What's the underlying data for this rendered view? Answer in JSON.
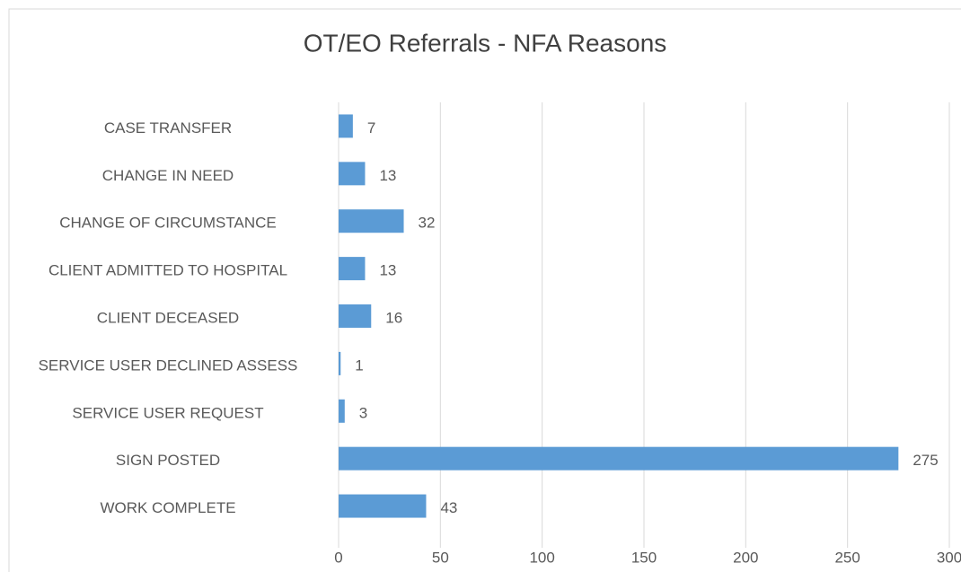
{
  "chart_data": {
    "type": "barh",
    "title": "OT/EO Referrals - NFA Reasons",
    "categories": [
      "CASE TRANSFER",
      "CHANGE IN NEED",
      "CHANGE OF CIRCUMSTANCE",
      "CLIENT ADMITTED TO HOSPITAL",
      "CLIENT DECEASED",
      "SERVICE USER DECLINED ASSESS",
      "SERVICE USER REQUEST",
      "SIGN POSTED",
      "WORK COMPLETE"
    ],
    "values": [
      7,
      13,
      32,
      13,
      16,
      1,
      3,
      275,
      43
    ],
    "color": "#5b9bd5",
    "xlim": [
      0,
      300
    ],
    "xticks": [
      0,
      50,
      100,
      150,
      200,
      250,
      300
    ],
    "grid": true
  }
}
